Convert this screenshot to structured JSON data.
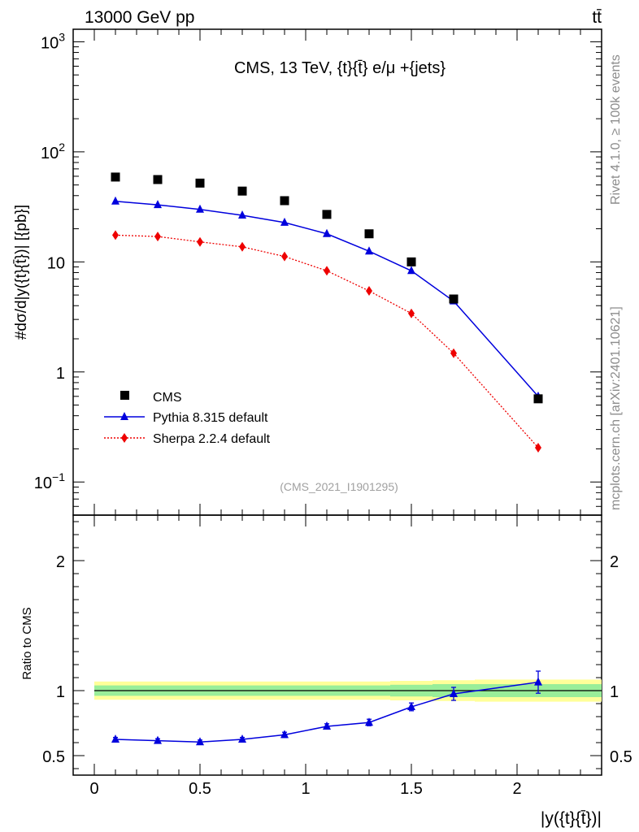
{
  "header": {
    "left": "13000 GeV pp",
    "right": "tt̄"
  },
  "side_text": {
    "rivet": "Rivet 4.1.0, ≥ 100k events",
    "source": "mcplots.cern.ch [arXiv:2401.10621]"
  },
  "watermark": "(CMS_2021_I1901295)",
  "colors": {
    "data": "#000000",
    "pythia": "#0000dd",
    "sherpa": "#ee0000",
    "band_outer": "#ffff99",
    "band_inner": "#99ee99"
  },
  "chart_data": [
    {
      "type": "scatter",
      "panel": "main",
      "title": "CMS, 13 TeV, {t}{t̄} e/μ +{jets}",
      "ylabel": "#dσ/d|y({t}{t̄})| [{pb}]",
      "yscale": "log",
      "xlim": [
        -0.1,
        2.4
      ],
      "ylim": [
        0.05,
        1300
      ],
      "ytick_labels": [
        {
          "value": 1000,
          "base": "10",
          "exp": "3"
        },
        {
          "value": 100,
          "base": "10",
          "exp": "2"
        },
        {
          "value": 10,
          "base": "10",
          "exp": ""
        },
        {
          "value": 1,
          "base": "1",
          "exp": ""
        },
        {
          "value": 0.1,
          "base": "10",
          "exp": "−1"
        }
      ],
      "x": [
        0.1,
        0.3,
        0.5,
        0.7,
        0.9,
        1.1,
        1.3,
        1.5,
        1.7,
        2.1
      ],
      "series": [
        {
          "name": "CMS",
          "marker": "square",
          "values": [
            59,
            56,
            52,
            44,
            36,
            27,
            18,
            10,
            4.6,
            0.57
          ]
        },
        {
          "name": "Pythia 8.315 default",
          "marker": "triangle",
          "line": "solid",
          "values": [
            35.5,
            33,
            30,
            26.5,
            22.8,
            18,
            12.5,
            8.3,
            4.4,
            0.6
          ]
        },
        {
          "name": "Sherpa 2.2.4 default",
          "marker": "diamond",
          "line": "dotted",
          "values": [
            17.5,
            17,
            15.2,
            13.7,
            11.2,
            8.3,
            5.45,
            3.4,
            1.48,
            0.205
          ]
        }
      ],
      "legend": "bottom-left"
    },
    {
      "type": "line",
      "panel": "ratio",
      "ylabel": "Ratio to CMS",
      "xlabel": "|y({t}{t̄})|",
      "xlim": [
        -0.1,
        2.4
      ],
      "ylim": [
        0.35,
        2.35
      ],
      "xticks": [
        0,
        0.5,
        1,
        1.5,
        2
      ],
      "xtick_labels": [
        "0",
        "0.5",
        "1",
        "1.5",
        "2"
      ],
      "yticks": [
        0.5,
        1,
        2
      ],
      "ytick_labels": [
        "0.5",
        "1",
        "2"
      ],
      "x": [
        0.1,
        0.3,
        0.5,
        0.7,
        0.9,
        1.1,
        1.3,
        1.5,
        1.7,
        2.1
      ],
      "series": [
        {
          "name": "Pythia 8.315 default",
          "values": [
            0.625,
            0.615,
            0.605,
            0.625,
            0.66,
            0.725,
            0.755,
            0.875,
            0.975,
            1.065
          ],
          "errors": [
            0.015,
            0.015,
            0.015,
            0.015,
            0.02,
            0.02,
            0.025,
            0.03,
            0.05,
            0.085
          ]
        }
      ],
      "band_edges": [
        0.0,
        0.2,
        0.4,
        0.6,
        0.8,
        1.0,
        1.2,
        1.4,
        1.6,
        1.8,
        2.4
      ],
      "band_outer": [
        0.07,
        0.07,
        0.07,
        0.07,
        0.07,
        0.07,
        0.07,
        0.075,
        0.08,
        0.085
      ],
      "band_inner": [
        0.04,
        0.04,
        0.04,
        0.04,
        0.04,
        0.04,
        0.04,
        0.045,
        0.05,
        0.05
      ]
    }
  ]
}
